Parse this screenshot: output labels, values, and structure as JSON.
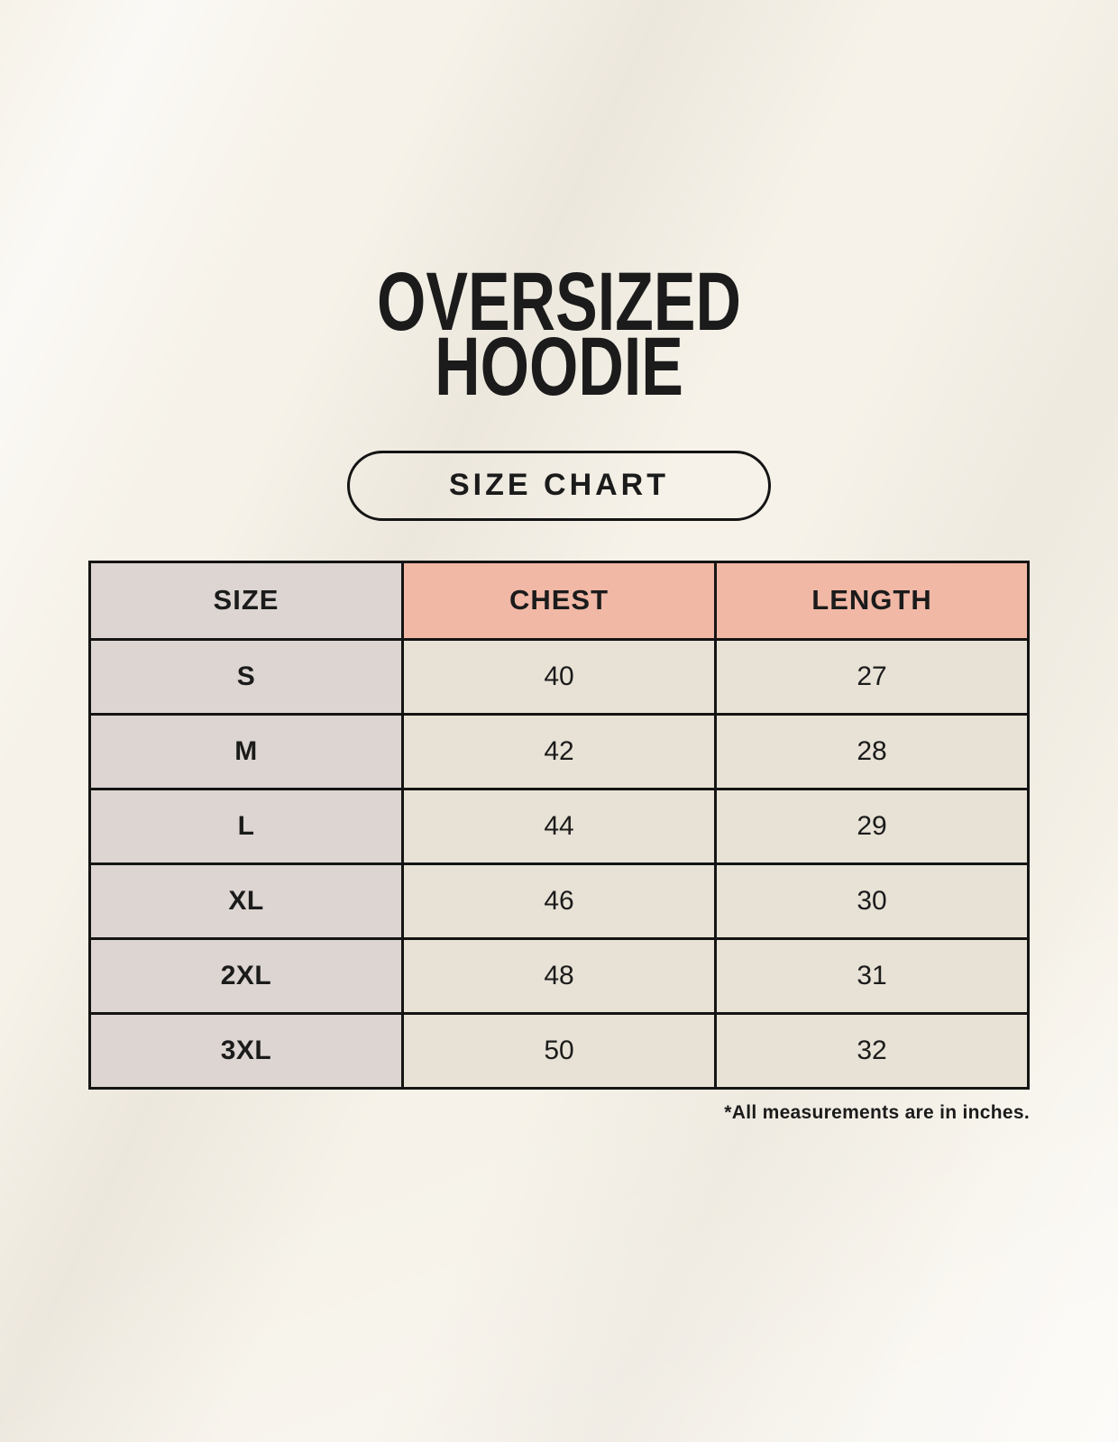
{
  "header": {
    "title_line1": "OVERSIZED",
    "title_line2": "HOODIE"
  },
  "badge": {
    "label": "SIZE CHART"
  },
  "footnote": "*All measurements are in inches.",
  "colors": {
    "background": "#f6f2e9",
    "header_size_bg": "#dcd5d1",
    "header_measure_bg": "#f1b8a6",
    "cell_size_bg": "#dcd5d1",
    "cell_value_bg": "#e8e2d6",
    "border": "#141414",
    "text": "#1b1b1b"
  },
  "chart_data": {
    "type": "table",
    "title": "OVERSIZED HOODIE",
    "subtitle": "SIZE CHART",
    "columns": [
      "SIZE",
      "CHEST",
      "LENGTH"
    ],
    "rows": [
      [
        "S",
        40,
        27
      ],
      [
        "M",
        42,
        28
      ],
      [
        "L",
        44,
        29
      ],
      [
        "XL",
        46,
        30
      ],
      [
        "2XL",
        48,
        31
      ],
      [
        "3XL",
        50,
        32
      ]
    ],
    "units": "inches",
    "notes": "*All measurements are in inches."
  }
}
